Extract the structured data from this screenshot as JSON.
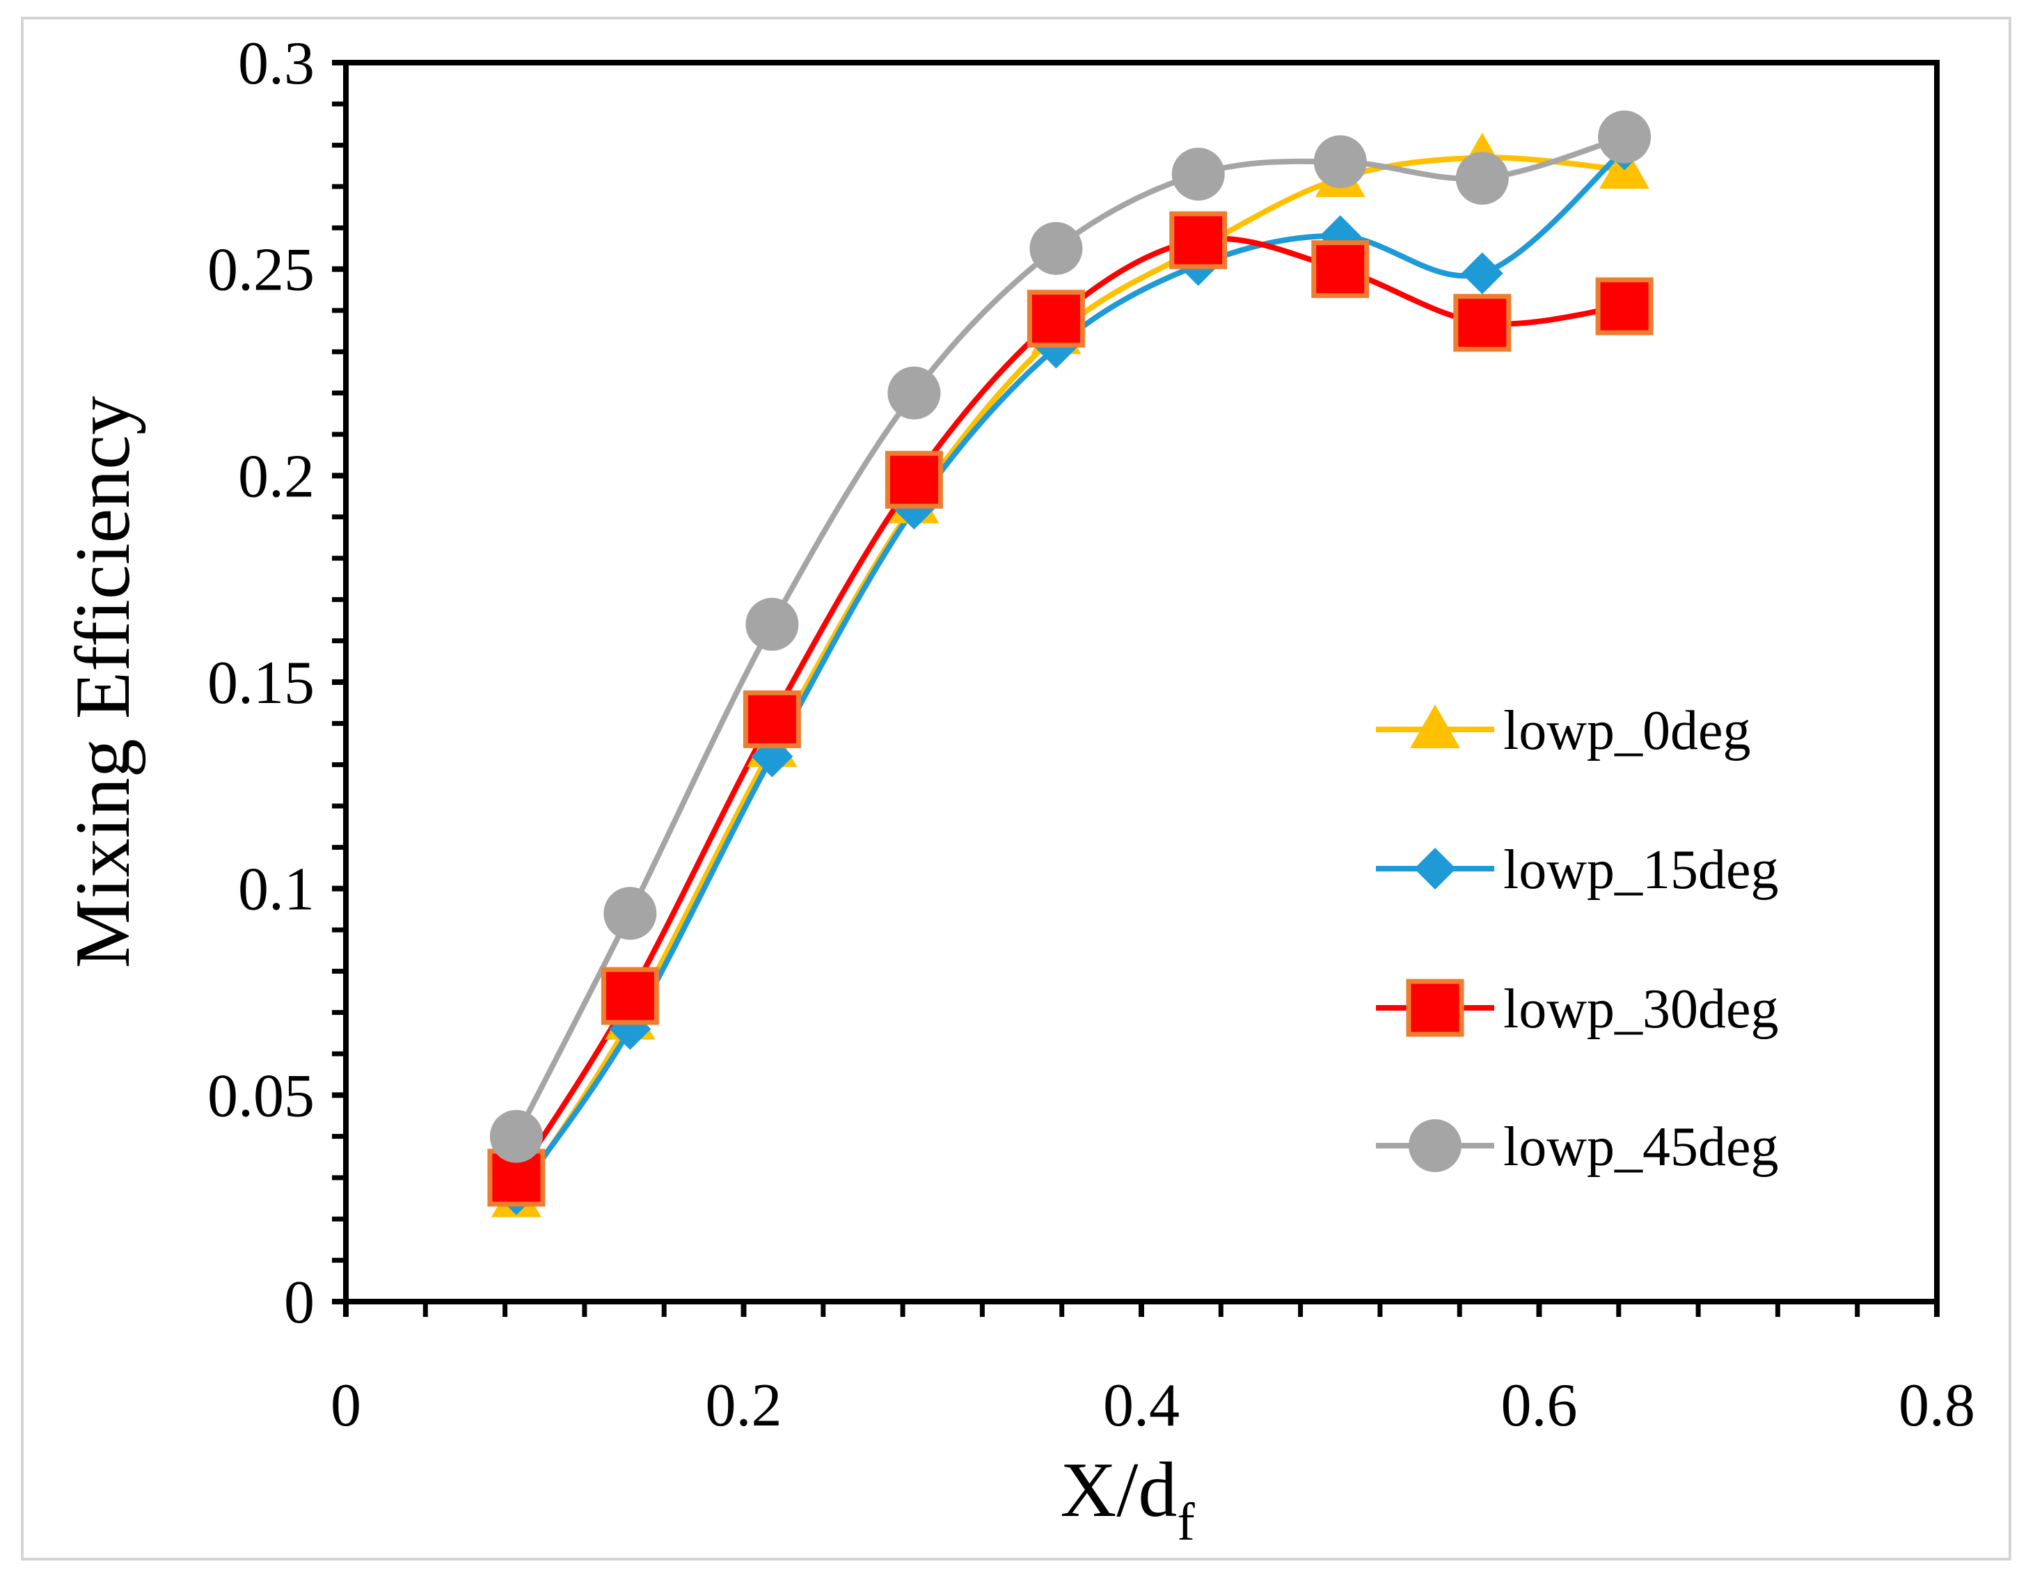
{
  "chart_data": {
    "type": "line",
    "title": "",
    "xlabel": "X/d",
    "xlabel_sub": "f",
    "ylabel": "Mixing Efficiency",
    "xlim": [
      0,
      0.8
    ],
    "ylim": [
      0,
      0.3
    ],
    "xticks": [
      "0",
      "0.2",
      "0.4",
      "0.6",
      "0.8"
    ],
    "yticks": [
      "0",
      "0.05",
      "0.1",
      "0.15",
      "0.2",
      "0.25",
      "0.3"
    ],
    "x": [
      0.0857,
      0.1429,
      0.2143,
      0.2857,
      0.3571,
      0.4286,
      0.5,
      0.5714,
      0.6429
    ],
    "legend_position": "right-middle",
    "series": [
      {
        "name": "lowp_0deg",
        "color": "#FFC000",
        "marker": "triangle",
        "values": [
          0.025,
          0.068,
          0.134,
          0.193,
          0.234,
          0.255,
          0.272,
          0.277,
          0.274
        ]
      },
      {
        "name": "lowp_15deg",
        "color": "#1E9AD6",
        "marker": "diamond",
        "values": [
          0.026,
          0.066,
          0.132,
          0.192,
          0.231,
          0.251,
          0.258,
          0.249,
          0.279
        ]
      },
      {
        "name": "lowp_30deg",
        "color": "#FF0000",
        "marker": "square",
        "edge": "#ED7D31",
        "values": [
          0.03,
          0.074,
          0.141,
          0.199,
          0.238,
          0.257,
          0.25,
          0.237,
          0.241
        ]
      },
      {
        "name": "lowp_45deg",
        "color": "#A5A5A5",
        "marker": "circle",
        "values": [
          0.04,
          0.094,
          0.164,
          0.22,
          0.255,
          0.273,
          0.276,
          0.272,
          0.282
        ]
      }
    ]
  }
}
